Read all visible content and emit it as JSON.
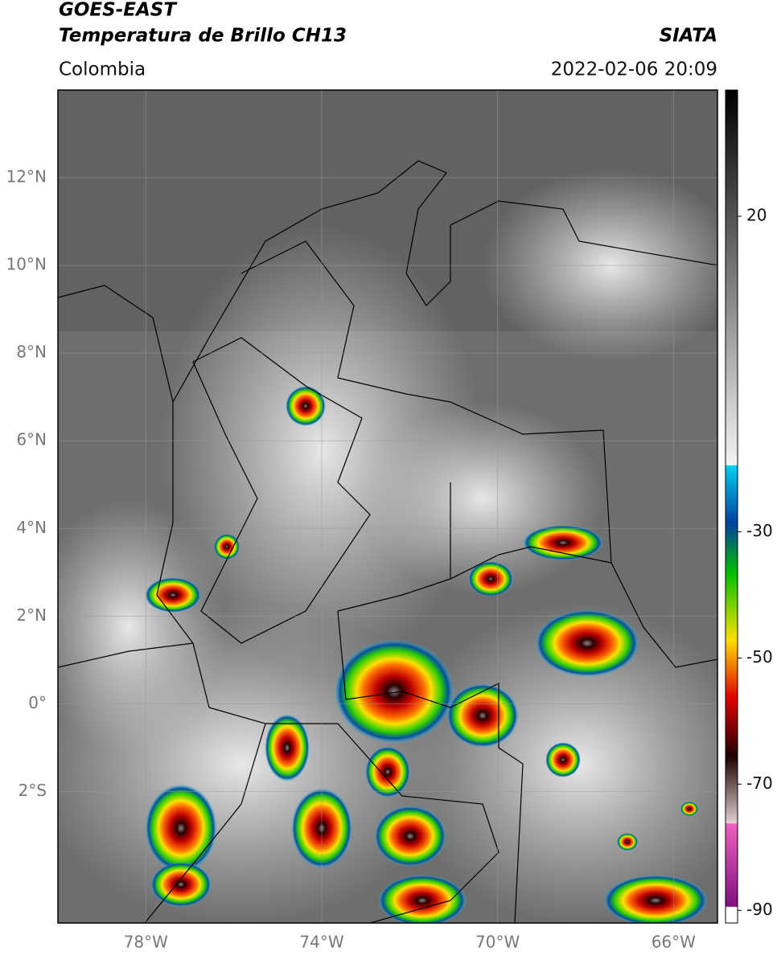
{
  "header": {
    "title": "GOES-EAST",
    "subtitle": "Temperatura de Brillo CH13",
    "source": "SIATA",
    "region": "Colombia",
    "datetime": "2022-02-06 20:09"
  },
  "map": {
    "xlim": [
      -80,
      -65
    ],
    "ylim": [
      -5,
      14
    ],
    "xticks": [
      {
        "value": -78,
        "label": "78°W"
      },
      {
        "value": -74,
        "label": "74°W"
      },
      {
        "value": -70,
        "label": "70°W"
      },
      {
        "value": -66,
        "label": "66°W"
      }
    ],
    "yticks": [
      {
        "value": 12,
        "label": "12°N"
      },
      {
        "value": 10,
        "label": "10°N"
      },
      {
        "value": 8,
        "label": "8°N"
      },
      {
        "value": 6,
        "label": "6°N"
      },
      {
        "value": 4,
        "label": "4°N"
      },
      {
        "value": 2,
        "label": "2°N"
      },
      {
        "value": 0,
        "label": "0°"
      },
      {
        "value": -2,
        "label": "2°S"
      }
    ],
    "grid": true
  },
  "colorbar": {
    "lim": [
      -92,
      40
    ],
    "ticks": [
      20,
      -30,
      -50,
      -70,
      -90
    ]
  }
}
